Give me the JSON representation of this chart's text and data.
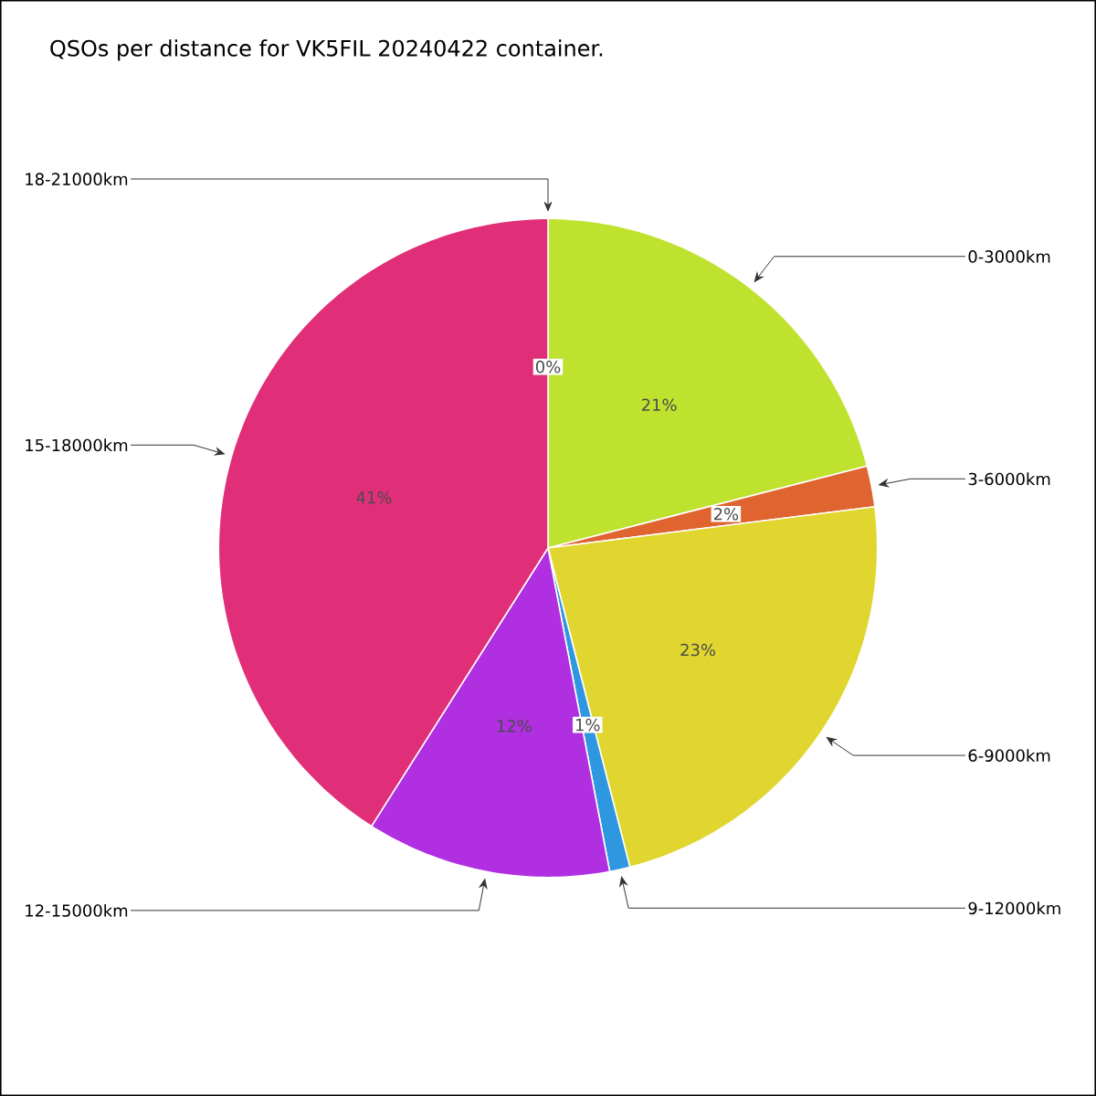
{
  "chart_data": {
    "type": "pie",
    "title": "QSOs per distance for VK5FIL 20240422 container.",
    "categories": [
      "0-3000km",
      "3-6000km",
      "6-9000km",
      "9-12000km",
      "12-15000km",
      "15-18000km",
      "18-21000km"
    ],
    "values": [
      21,
      2,
      23,
      1,
      12,
      41,
      0
    ],
    "value_labels": [
      "21%",
      "2%",
      "23%",
      "1%",
      "12%",
      "41%",
      "0%"
    ],
    "colors": [
      "#bfe22f",
      "#e06430",
      "#e0d62f",
      "#2f96e0",
      "#b02fe0",
      "#e02f78",
      "#e02f78"
    ]
  }
}
